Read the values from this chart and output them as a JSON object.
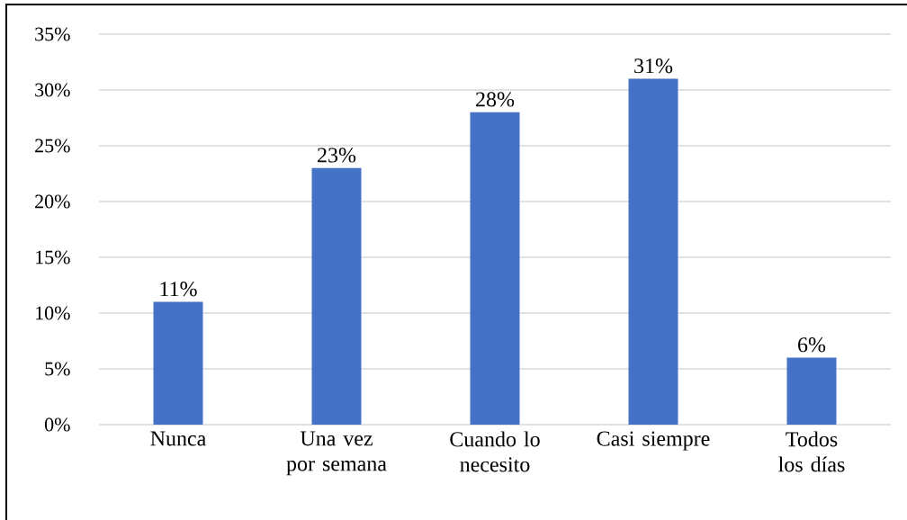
{
  "chart_data": {
    "type": "bar",
    "categories": [
      "Nunca",
      "Una vez por semana",
      "Cuando lo necesito",
      "Casi siempre",
      "Todos los días"
    ],
    "values": [
      11,
      23,
      28,
      31,
      6
    ],
    "value_labels": [
      "11%",
      "23%",
      "28%",
      "31%",
      "6%"
    ],
    "color": "#4472c4",
    "ylim": [
      0,
      35
    ],
    "yticks": [
      {
        "value": 0,
        "label": "0%"
      },
      {
        "value": 5,
        "label": "5%"
      },
      {
        "value": 10,
        "label": "10%"
      },
      {
        "value": 15,
        "label": "15%"
      },
      {
        "value": 20,
        "label": "20%"
      },
      {
        "value": 25,
        "label": "25%"
      },
      {
        "value": 30,
        "label": "30%"
      },
      {
        "value": 35,
        "label": "35%"
      }
    ],
    "grid": "y"
  }
}
